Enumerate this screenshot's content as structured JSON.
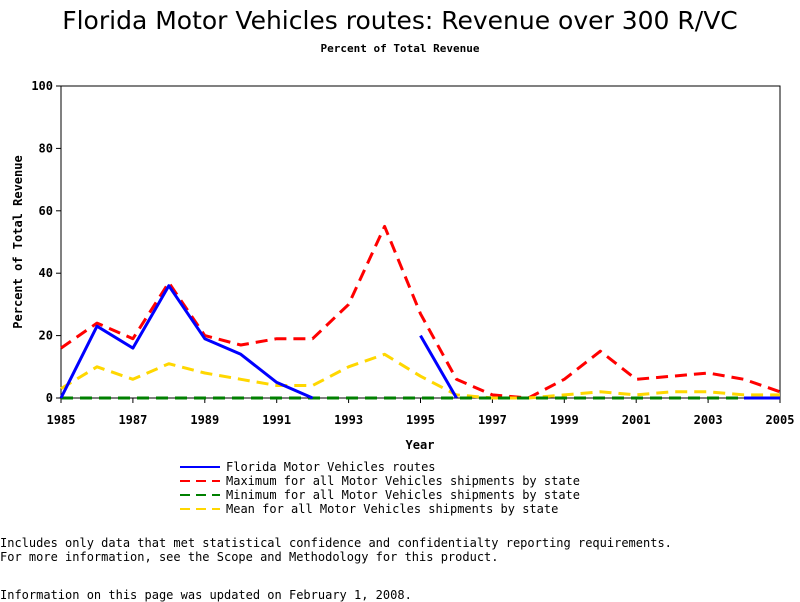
{
  "chart_data": {
    "type": "line",
    "title": "Florida Motor Vehicles routes: Revenue over 300 R/VC",
    "subtitle": "Percent of Total Revenue",
    "xlabel": "Year",
    "ylabel": "Percent of Total Revenue",
    "xlim": [
      1985,
      2005
    ],
    "ylim": [
      0,
      100
    ],
    "x_ticks": [
      "1985",
      "1987",
      "1989",
      "1991",
      "1993",
      "1995",
      "1997",
      "1999",
      "2001",
      "2003",
      "2005"
    ],
    "y_ticks": [
      "0",
      "20",
      "40",
      "60",
      "80",
      "100"
    ],
    "grid": false,
    "legend_position": "bottom",
    "series": [
      {
        "name": "Florida Motor Vehicles routes",
        "color": "#0000ff",
        "dash": "solid",
        "segments": [
          [
            [
              1985,
              0
            ],
            [
              1986,
              23
            ],
            [
              1987,
              16
            ],
            [
              1988,
              36
            ],
            [
              1989,
              19
            ],
            [
              1990,
              14
            ],
            [
              1991,
              5
            ],
            [
              1992,
              0
            ]
          ],
          [
            [
              1995,
              20
            ],
            [
              1996,
              0
            ]
          ],
          [
            [
              2004,
              0
            ],
            [
              2005,
              0
            ]
          ]
        ]
      },
      {
        "name": "Maximum for all Motor Vehicles shipments by state",
        "color": "#ff0000",
        "dash": "dashed",
        "segments": [
          [
            [
              1985,
              16
            ],
            [
              1986,
              24
            ],
            [
              1987,
              19
            ],
            [
              1988,
              37
            ],
            [
              1989,
              20
            ],
            [
              1990,
              17
            ],
            [
              1991,
              19
            ],
            [
              1992,
              19
            ],
            [
              1993,
              30
            ],
            [
              1994,
              55
            ],
            [
              1995,
              27
            ],
            [
              1996,
              6
            ],
            [
              1997,
              1
            ],
            [
              1998,
              0
            ],
            [
              1999,
              6
            ],
            [
              2000,
              15
            ],
            [
              2001,
              6
            ],
            [
              2002,
              7
            ],
            [
              2003,
              8
            ],
            [
              2004,
              6
            ],
            [
              2005,
              2
            ]
          ]
        ]
      },
      {
        "name": "Minimum for all Motor Vehicles shipments by state",
        "color": "#008000",
        "dash": "dashed",
        "segments": [
          [
            [
              1985,
              0
            ],
            [
              1986,
              0
            ],
            [
              1987,
              0
            ],
            [
              1988,
              0
            ],
            [
              1989,
              0
            ],
            [
              1990,
              0
            ],
            [
              1991,
              0
            ],
            [
              1992,
              0
            ],
            [
              1993,
              0
            ],
            [
              1994,
              0
            ],
            [
              1995,
              0
            ],
            [
              1996,
              0
            ],
            [
              1997,
              0
            ],
            [
              1998,
              0
            ],
            [
              1999,
              0
            ],
            [
              2000,
              0
            ],
            [
              2001,
              0
            ],
            [
              2002,
              0
            ],
            [
              2003,
              0
            ],
            [
              2004,
              0
            ],
            [
              2005,
              0
            ]
          ]
        ]
      },
      {
        "name": "Mean for all Motor Vehicles shipments by state",
        "color": "#ffd700",
        "dash": "dashed",
        "segments": [
          [
            [
              1985,
              3
            ],
            [
              1986,
              10
            ],
            [
              1987,
              6
            ],
            [
              1988,
              11
            ],
            [
              1989,
              8
            ],
            [
              1990,
              6
            ],
            [
              1991,
              4
            ],
            [
              1992,
              4
            ],
            [
              1993,
              10
            ],
            [
              1994,
              14
            ],
            [
              1995,
              7
            ],
            [
              1996,
              1
            ],
            [
              1997,
              0
            ],
            [
              1998,
              0
            ],
            [
              1999,
              1
            ],
            [
              2000,
              2
            ],
            [
              2001,
              1
            ],
            [
              2002,
              2
            ],
            [
              2003,
              2
            ],
            [
              2004,
              1
            ],
            [
              2005,
              1
            ]
          ]
        ]
      }
    ]
  },
  "footnotes": {
    "line1": "Includes only data that met statistical confidence and confidentialty reporting requirements.",
    "line2": "For more information, see the Scope and Methodology for this product.",
    "line3": "Information on this page was updated on February 1, 2008."
  }
}
